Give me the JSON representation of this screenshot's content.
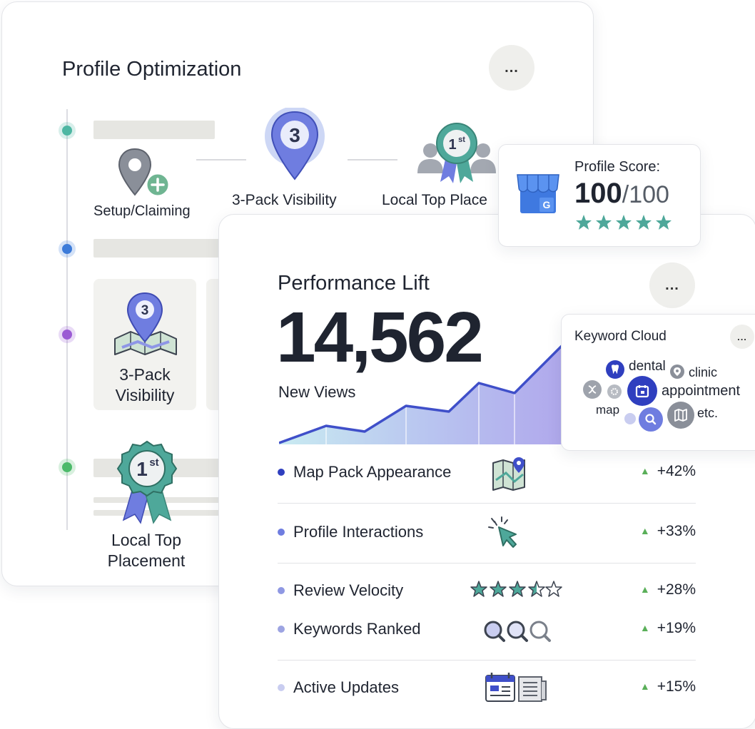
{
  "optimization": {
    "title": "Profile Optimization",
    "menu_label": "...",
    "steps": [
      {
        "label": "Setup/Claiming"
      },
      {
        "label": "3-Pack Visibility",
        "badge": "3"
      },
      {
        "label": "Local Top Place",
        "badge": "1st"
      }
    ],
    "tiles": [
      {
        "label_line1": "3-Pack",
        "label_line2": "Visibility",
        "badge": "3"
      }
    ],
    "bottom_step": {
      "label_line1": "Local Top",
      "label_line2": "Placement",
      "badge": "1st"
    },
    "timeline_colors": [
      "#4fb8a3",
      "#3d7bd9",
      "#9b5bd4",
      "#4cba6b"
    ]
  },
  "score": {
    "label": "Profile Score:",
    "value": "100",
    "max": "/100",
    "stars": 5,
    "logo_letter": "G"
  },
  "performance": {
    "title": "Performance Lift",
    "menu_label": "...",
    "value": "14,562",
    "value_label": "New Views",
    "metrics": [
      {
        "label": "Map Pack Appearance",
        "change": "+42%",
        "icon": "map-icon",
        "dot_color": "#2f3fbf"
      },
      {
        "label": "Profile Interactions",
        "change": "+33%",
        "icon": "cursor-click-icon",
        "dot_color": "#6f7de0"
      },
      {
        "label": "Review Velocity",
        "change": "+28%",
        "icon": "stars-rating-icon",
        "dot_color": "#8f98e3"
      },
      {
        "label": "Keywords Ranked",
        "change": "+19%",
        "icon": "magnifier-icon",
        "dot_color": "#9da4e2"
      },
      {
        "label": "Active Updates",
        "change": "+15%",
        "icon": "calendar-news-icon",
        "dot_color": "#c9cdf0"
      }
    ],
    "arrow_symbol": "▲"
  },
  "keyword_cloud": {
    "title": "Keyword Cloud",
    "menu_label": "...",
    "words": [
      "dental",
      "clinic",
      "appointment",
      "map",
      "etc."
    ]
  }
}
